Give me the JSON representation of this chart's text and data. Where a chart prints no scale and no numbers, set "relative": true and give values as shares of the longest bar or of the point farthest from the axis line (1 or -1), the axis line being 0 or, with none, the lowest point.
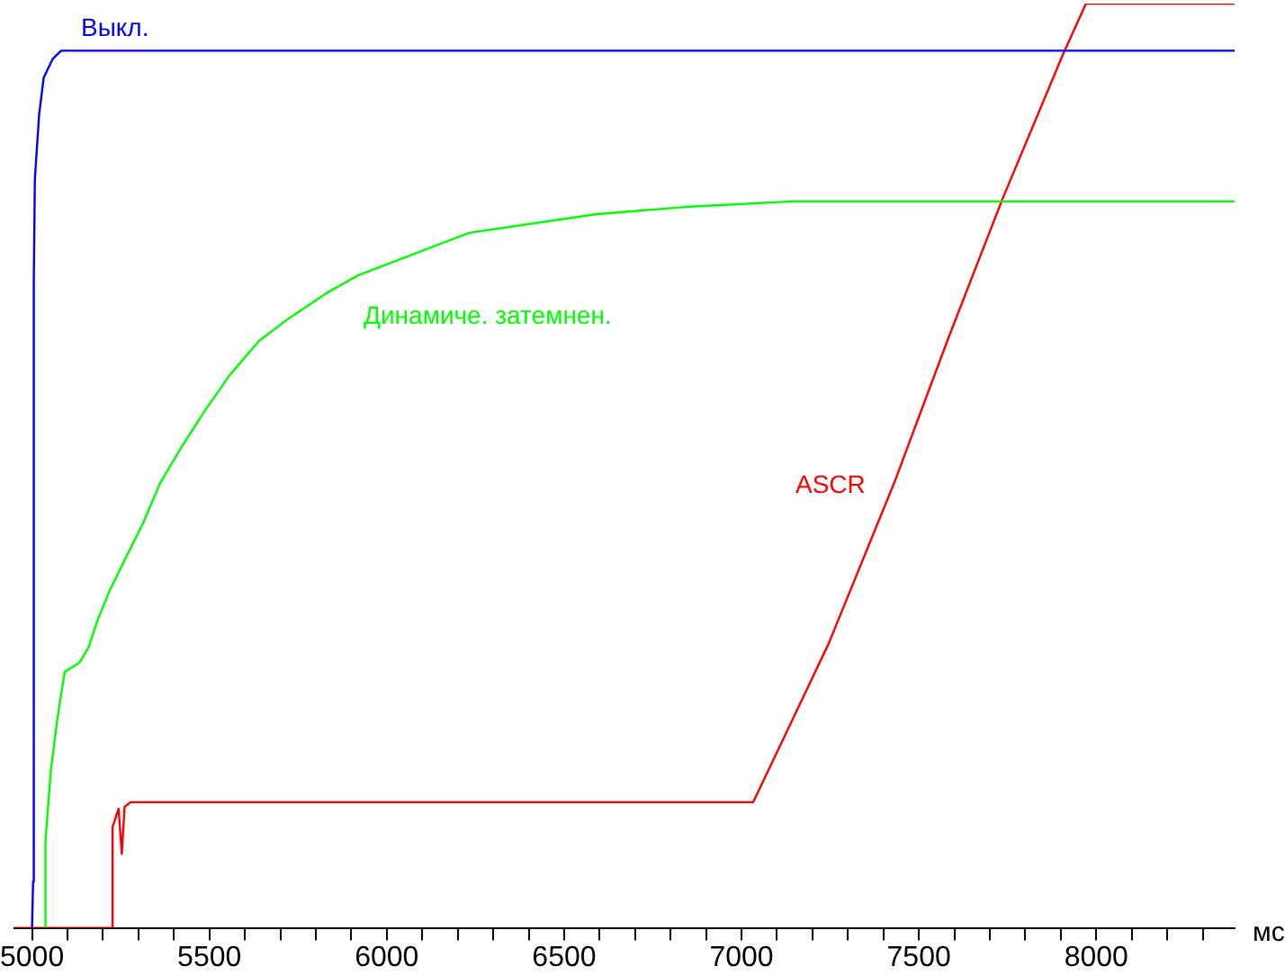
{
  "chart_data": {
    "type": "line",
    "relative": true,
    "xlabel": "мс",
    "xlim": [
      4950,
      8390
    ],
    "xticks": [
      5000,
      {
        "value": 5100,
        "label": null
      },
      {
        "value": 5200,
        "label": null
      },
      {
        "value": 5300,
        "label": null
      },
      {
        "value": 5400,
        "label": null
      },
      5500,
      {
        "value": 5600,
        "label": null
      },
      {
        "value": 5700,
        "label": null
      },
      {
        "value": 5800,
        "label": null
      },
      {
        "value": 5900,
        "label": null
      },
      6000,
      {
        "value": 6100,
        "label": null
      },
      {
        "value": 6200,
        "label": null
      },
      {
        "value": 6300,
        "label": null
      },
      {
        "value": 6400,
        "label": null
      },
      6500,
      {
        "value": 6600,
        "label": null
      },
      {
        "value": 6700,
        "label": null
      },
      {
        "value": 6800,
        "label": null
      },
      {
        "value": 6900,
        "label": null
      },
      7000,
      {
        "value": 7100,
        "label": null
      },
      {
        "value": 7200,
        "label": null
      },
      {
        "value": 7300,
        "label": null
      },
      {
        "value": 7400,
        "label": null
      },
      7500,
      {
        "value": 7600,
        "label": null
      },
      {
        "value": 7700,
        "label": null
      },
      {
        "value": 7800,
        "label": null
      },
      {
        "value": 7900,
        "label": null
      },
      8000,
      {
        "value": 8100,
        "label": null
      },
      {
        "value": 8200,
        "label": null
      },
      {
        "value": 8300,
        "label": null
      }
    ],
    "grid": false,
    "legend": false,
    "marker": "none",
    "line_style": "solid",
    "series": [
      {
        "name": "Выкл.",
        "color": "#0000ff",
        "x": [
          5000,
          5003,
          5005,
          5008,
          5020,
          5033,
          5058,
          5082,
          8390
        ],
        "values": [
          0,
          0.05,
          0.7,
          0.81,
          0.88,
          0.92,
          0.94,
          0.949,
          0.949
        ]
      },
      {
        "name": "Динамиче. затемнен.",
        "color": "#00ff00",
        "x": [
          5038,
          5038,
          5053,
          5072,
          5092,
          5134,
          5160,
          5185,
          5219,
          5261,
          5312,
          5362,
          5421,
          5488,
          5557,
          5640,
          5726,
          5827,
          5919,
          6233,
          6588,
          6841,
          7145,
          8390
        ],
        "values": [
          0,
          0.095,
          0.17,
          0.228,
          0.277,
          0.287,
          0.304,
          0.333,
          0.365,
          0.398,
          0.437,
          0.482,
          0.52,
          0.56,
          0.598,
          0.635,
          0.66,
          0.686,
          0.706,
          0.752,
          0.772,
          0.78,
          0.786,
          0.786
        ]
      },
      {
        "name": "ASCR",
        "color": "#ff0000",
        "x": [
          4950,
          5227,
          5227,
          5244,
          5253,
          5261,
          5278,
          7033,
          7245,
          7431,
          7583,
          7735,
          7904,
          7971,
          8390
        ],
        "values": [
          0,
          0,
          0.109,
          0.129,
          0.08,
          0.131,
          0.136,
          0.136,
          0.307,
          0.482,
          0.638,
          0.788,
          0.943,
          1,
          1
        ]
      }
    ]
  }
}
